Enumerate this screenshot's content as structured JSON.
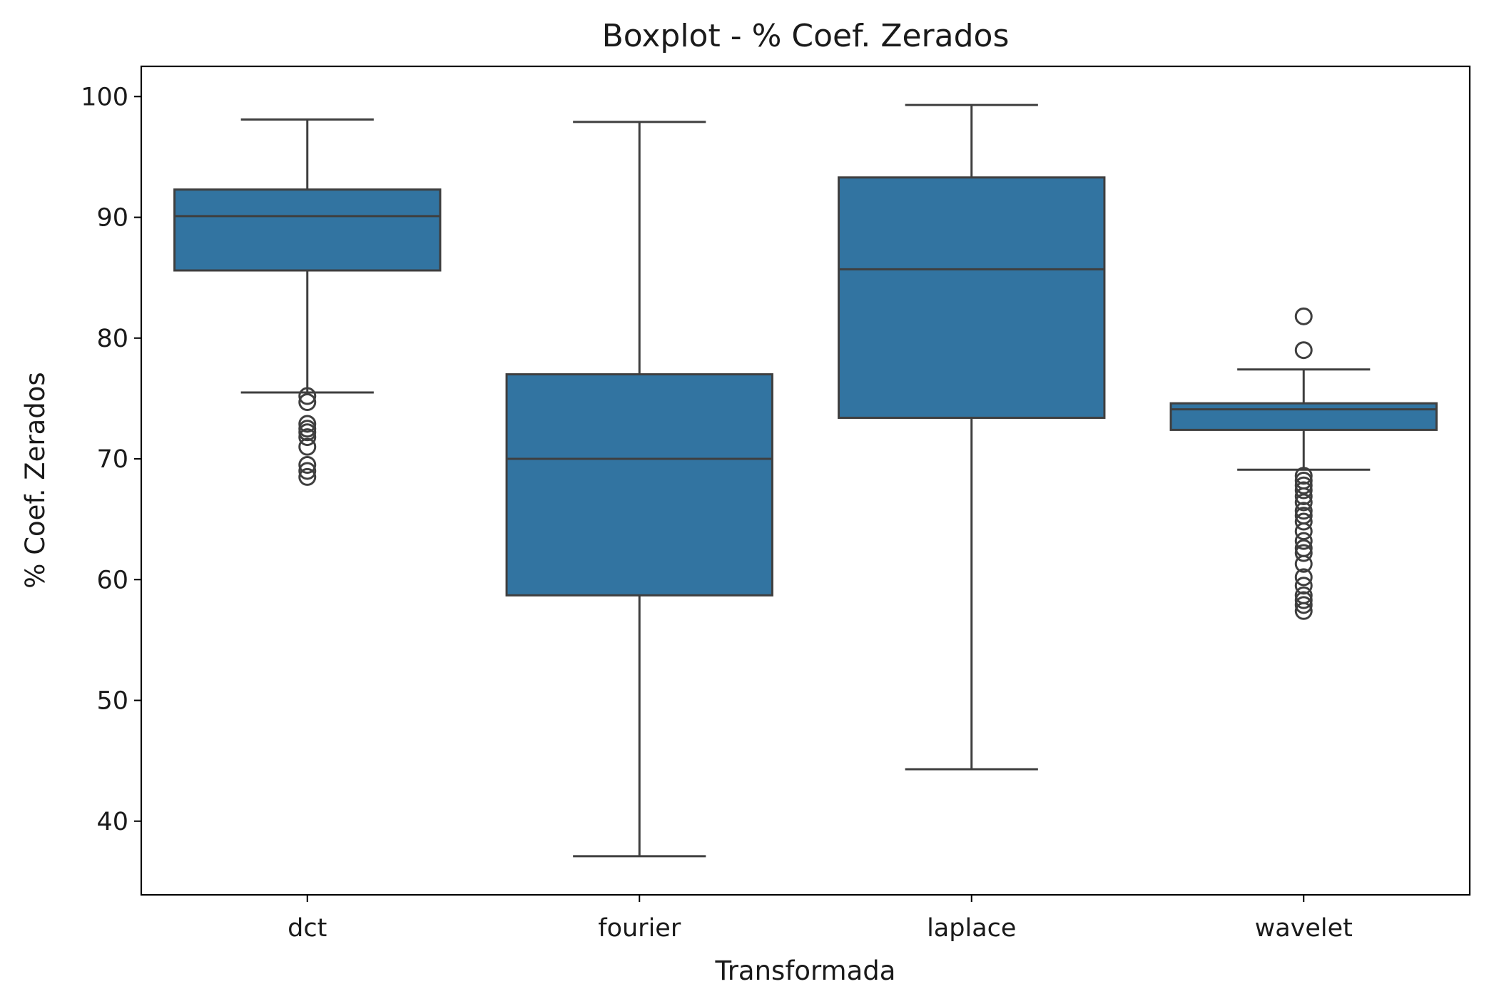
{
  "chart_data": {
    "type": "boxplot",
    "title": "Boxplot - % Coef. Zerados",
    "xlabel": "Transformada",
    "ylabel": "% Coef. Zerados",
    "ylim": [
      33.9,
      102.5
    ],
    "yticks": [
      40,
      50,
      60,
      70,
      80,
      90,
      100
    ],
    "ytick_labels": [
      "40",
      "50",
      "60",
      "70",
      "80",
      "90",
      "100"
    ],
    "categories": [
      "dct",
      "fourier",
      "laplace",
      "wavelet"
    ],
    "grid": false,
    "legend": "none",
    "box_color": "#3274a1",
    "line_color": "#3f3f3f",
    "boxes": [
      {
        "category": "dct",
        "whisker_low": 75.5,
        "q1": 85.6,
        "median": 90.1,
        "q3": 92.3,
        "whisker_high": 98.1,
        "outliers": [
          75.2,
          74.7,
          72.9,
          72.5,
          72.2,
          71.8,
          71.0,
          69.5,
          69.0,
          68.5
        ]
      },
      {
        "category": "fourier",
        "whisker_low": 37.1,
        "q1": 58.7,
        "median": 70.0,
        "q3": 77.0,
        "whisker_high": 97.9,
        "outliers": []
      },
      {
        "category": "laplace",
        "whisker_low": 44.3,
        "q1": 73.4,
        "median": 85.7,
        "q3": 93.3,
        "whisker_high": 99.3,
        "outliers": []
      },
      {
        "category": "wavelet",
        "whisker_low": 69.1,
        "q1": 72.4,
        "median": 74.1,
        "q3": 74.6,
        "whisker_high": 77.4,
        "outliers": [
          81.8,
          79.0,
          68.6,
          68.2,
          67.8,
          67.4,
          66.9,
          66.4,
          65.7,
          65.3,
          64.8,
          64.0,
          63.2,
          62.6,
          62.2,
          61.3,
          60.2,
          59.5,
          58.7,
          58.3,
          57.9,
          57.4
        ]
      }
    ]
  }
}
